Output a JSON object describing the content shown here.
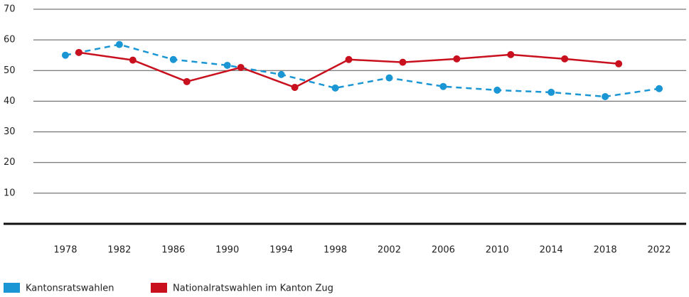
{
  "chart_data": {
    "type": "line",
    "xlim": [
      1975,
      2024
    ],
    "xticks": [
      1978,
      1982,
      1986,
      1990,
      1994,
      1998,
      2002,
      2006,
      2010,
      2014,
      2018,
      2022
    ],
    "ylim": [
      0,
      70
    ],
    "yticks": [
      10,
      20,
      30,
      40,
      50,
      60,
      70
    ],
    "grid": true,
    "legend": "bottom",
    "series": [
      {
        "name": "Kantonsratswahlen",
        "color": "#1a96d4",
        "dashed": true,
        "x": [
          1978,
          1982,
          1986,
          1990,
          1994,
          1998,
          2002,
          2006,
          2010,
          2014,
          2018,
          2022
        ],
        "values": [
          55.0,
          58.5,
          53.6,
          51.7,
          48.7,
          44.3,
          47.6,
          44.8,
          43.6,
          42.9,
          41.5,
          44.1
        ]
      },
      {
        "name": "Nationalratswahlen im Kanton Zug",
        "color": "#c8101e",
        "dashed": false,
        "x": [
          1979,
          1983,
          1987,
          1991,
          1995,
          1999,
          2003,
          2007,
          2011,
          2015,
          2019
        ],
        "values": [
          55.9,
          53.4,
          46.4,
          51.0,
          44.5,
          53.6,
          52.7,
          53.8,
          55.2,
          53.8,
          52.2
        ]
      }
    ]
  }
}
